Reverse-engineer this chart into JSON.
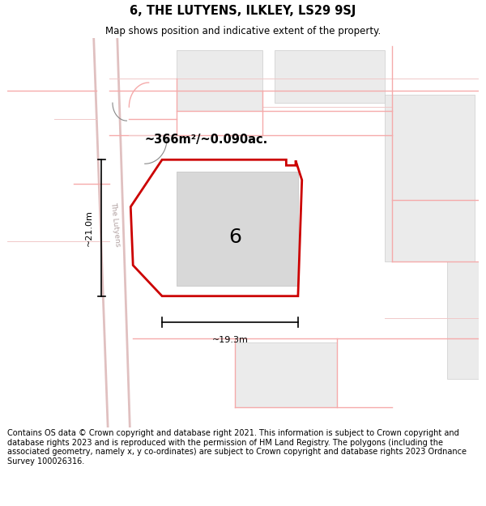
{
  "title": "6, THE LUTYENS, ILKLEY, LS29 9SJ",
  "subtitle": "Map shows position and indicative extent of the property.",
  "footer": "Contains OS data © Crown copyright and database right 2021. This information is subject to Crown copyright and database rights 2023 and is reproduced with the permission of HM Land Registry. The polygons (including the associated geometry, namely x, y co-ordinates) are subject to Crown copyright and database rights 2023 Ordnance Survey 100026316.",
  "area_label": "~366m²/~0.090ac.",
  "property_number": "6",
  "dim_width": "~19.3m",
  "dim_height": "~21.0m",
  "road_label": "The Lutyens",
  "bg_color": "#ffffff",
  "map_bg": "#ffffff",
  "plot_edge": "#cc0000",
  "building_fill": "#d8d8d8",
  "boundary_color": "#f5aaaa",
  "light_boundary": "#f0c8c8",
  "grey_block": "#ebebeb",
  "fig_width": 6.0,
  "fig_height": 6.25
}
